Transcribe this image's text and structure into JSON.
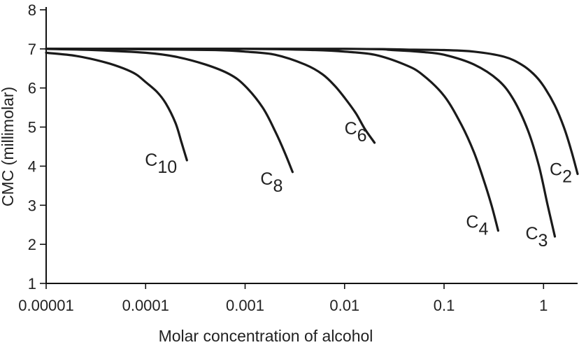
{
  "chart_data": {
    "type": "line",
    "title": "",
    "xlabel": "Molar concentration of alcohol",
    "ylabel": "CMC (millimolar)",
    "x_scale": "log",
    "xlim": [
      1e-05,
      2.2
    ],
    "ylim": [
      1,
      8
    ],
    "x_ticks": [
      1e-05,
      0.0001,
      0.001,
      0.01,
      0.1,
      1
    ],
    "x_tick_labels": [
      "0.00001",
      "0.0001",
      "0.001",
      "0.01",
      "0.1",
      "1"
    ],
    "y_ticks": [
      1,
      2,
      3,
      4,
      5,
      6,
      7,
      8
    ],
    "y_tick_labels": [
      "1",
      "2",
      "3",
      "4",
      "5",
      "6",
      "7",
      "8"
    ],
    "grid": false,
    "legend": "none",
    "series": [
      {
        "name": "C10",
        "label_main": "C",
        "label_sub": "10",
        "x": [
          1e-05,
          2e-05,
          4e-05,
          6e-05,
          8e-05,
          0.0001,
          0.00013,
          0.00016,
          0.0002,
          0.00023,
          0.00026
        ],
        "y": [
          6.9,
          6.82,
          6.65,
          6.5,
          6.35,
          6.15,
          5.9,
          5.6,
          5.1,
          4.6,
          4.15
        ]
      },
      {
        "name": "C8",
        "label_main": "C",
        "label_sub": "8",
        "x": [
          1e-05,
          3e-05,
          0.0001,
          0.0002,
          0.0004,
          0.0007,
          0.001,
          0.0015,
          0.002,
          0.0025,
          0.003
        ],
        "y": [
          7.0,
          6.97,
          6.9,
          6.8,
          6.6,
          6.35,
          6.05,
          5.5,
          4.9,
          4.35,
          3.85
        ]
      },
      {
        "name": "C6",
        "label_main": "C",
        "label_sub": "6",
        "x": [
          1e-05,
          0.0001,
          0.0005,
          0.001,
          0.002,
          0.004,
          0.006,
          0.008,
          0.01,
          0.013,
          0.016,
          0.02
        ],
        "y": [
          7.0,
          6.99,
          6.97,
          6.93,
          6.85,
          6.6,
          6.35,
          6.05,
          5.75,
          5.35,
          4.95,
          4.6
        ]
      },
      {
        "name": "C4",
        "label_main": "C",
        "label_sub": "4",
        "x": [
          1e-05,
          0.001,
          0.005,
          0.01,
          0.02,
          0.04,
          0.06,
          0.1,
          0.15,
          0.2,
          0.25,
          0.3,
          0.35
        ],
        "y": [
          7.0,
          7.0,
          6.97,
          6.93,
          6.85,
          6.6,
          6.35,
          5.8,
          5.05,
          4.35,
          3.65,
          3.0,
          2.35
        ]
      },
      {
        "name": "C3",
        "label_main": "C",
        "label_sub": "3",
        "x": [
          1e-05,
          0.01,
          0.03,
          0.06,
          0.1,
          0.2,
          0.35,
          0.5,
          0.7,
          0.9,
          1.1,
          1.3
        ],
        "y": [
          7.0,
          7.0,
          6.97,
          6.92,
          6.85,
          6.6,
          6.2,
          5.7,
          4.9,
          4.0,
          3.0,
          2.2
        ]
      },
      {
        "name": "C2",
        "label_main": "C",
        "label_sub": "2",
        "x": [
          1e-05,
          0.01,
          0.05,
          0.1,
          0.2,
          0.4,
          0.6,
          0.8,
          1.0,
          1.3,
          1.6,
          1.9,
          2.2
        ],
        "y": [
          7.0,
          7.0,
          6.98,
          6.97,
          6.93,
          6.8,
          6.6,
          6.35,
          6.05,
          5.55,
          5.0,
          4.4,
          3.8
        ]
      }
    ]
  }
}
